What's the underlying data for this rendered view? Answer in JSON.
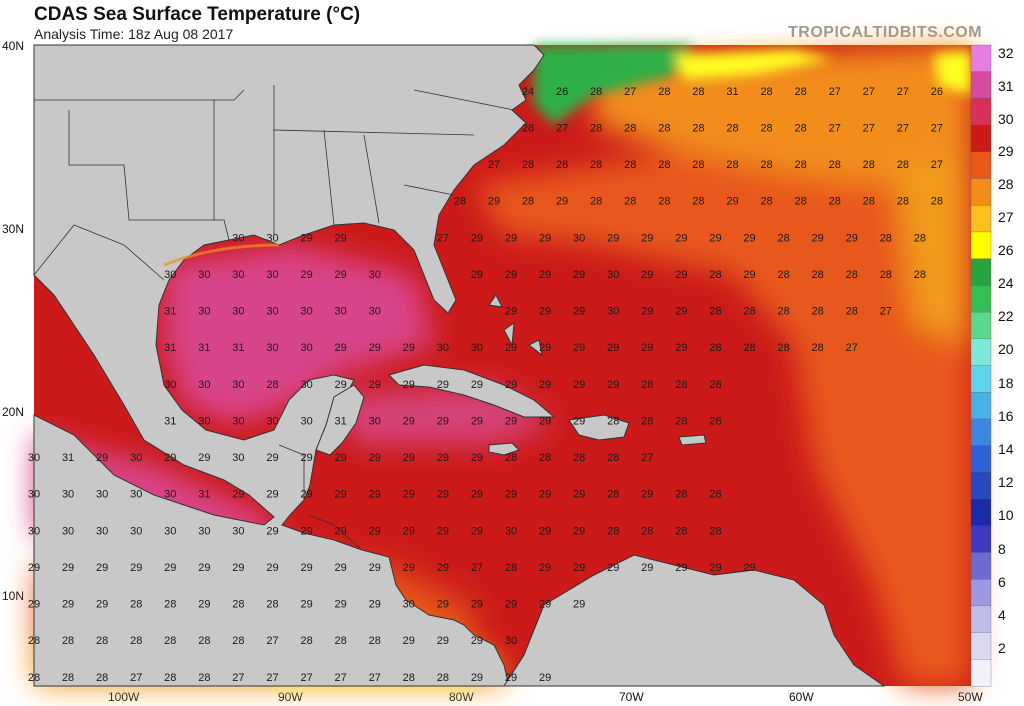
{
  "header": {
    "title": "CDAS Sea Surface Temperature (°C)",
    "subtitle": "Analysis Time: 18z Aug 08 2017",
    "brand": "TROPICALTIDBITS.COM"
  },
  "axes": {
    "lat_labels": [
      "40N",
      "30N",
      "20N",
      "10N"
    ],
    "lon_labels": [
      "100W",
      "90W",
      "80W",
      "70W",
      "60W",
      "50W"
    ]
  },
  "colorbar": {
    "labels": [
      "32",
      "31",
      "30",
      "29",
      "28",
      "27",
      "26",
      "24",
      "22",
      "20",
      "18",
      "16",
      "14",
      "12",
      "10",
      "8",
      "6",
      "4",
      "2"
    ],
    "stops": [
      {
        "color": "#e77de0"
      },
      {
        "color": "#d64aa0"
      },
      {
        "color": "#d9305a"
      },
      {
        "color": "#cc1a1a"
      },
      {
        "color": "#e8581a"
      },
      {
        "color": "#f28d1a"
      },
      {
        "color": "#fbbf1e"
      },
      {
        "color": "#ffff00"
      },
      {
        "color": "#28a43f"
      },
      {
        "color": "#35be55"
      },
      {
        "color": "#5cd88e"
      },
      {
        "color": "#7ee8d8"
      },
      {
        "color": "#5fd2ee"
      },
      {
        "color": "#4bb0e8"
      },
      {
        "color": "#3c88e0"
      },
      {
        "color": "#2f60d8"
      },
      {
        "color": "#2848c0"
      },
      {
        "color": "#1a2aa8"
      },
      {
        "color": "#3e3ac0"
      },
      {
        "color": "#6d6ad0"
      },
      {
        "color": "#9e98e0"
      },
      {
        "color": "#c0bcea"
      },
      {
        "color": "#dcd8f2"
      },
      {
        "color": "#f2f0fa"
      }
    ]
  },
  "colors": {
    "land": "#c8c8c8",
    "water_pink": "#d64a8c",
    "water_red": "#cc1a1a",
    "water_orange": "#e8581a",
    "water_amber": "#f29a1a",
    "water_yellow": "#ffff22",
    "water_green": "#2fb04a",
    "boundary": "#333333"
  },
  "grid_values": [
    {
      "row": 0,
      "lon": -76,
      "lat": 37.5,
      "vals": [
        "24",
        "26",
        "28",
        "27",
        "28",
        "28",
        "31",
        "28",
        "28",
        "27",
        "27",
        "27",
        "26"
      ]
    },
    {
      "row": 1,
      "lon": -76,
      "lat": 35.5,
      "vals": [
        "28",
        "27",
        "28",
        "28",
        "28",
        "28",
        "28",
        "28",
        "28",
        "27",
        "27",
        "27",
        "27"
      ]
    },
    {
      "row": 2,
      "lon": -78,
      "lat": 33.5,
      "vals": [
        "27",
        "28",
        "28",
        "28",
        "28",
        "28",
        "28",
        "28",
        "28",
        "28",
        "28",
        "28",
        "28",
        "27"
      ]
    },
    {
      "row": 3,
      "lon": -80,
      "lat": 31.5,
      "vals": [
        "28",
        "29",
        "28",
        "29",
        "28",
        "28",
        "28",
        "28",
        "29",
        "28",
        "28",
        "28",
        "28",
        "28",
        "28"
      ]
    },
    {
      "row": 4,
      "lon": -93,
      "lat": 29.5,
      "vals": [
        "30",
        "30",
        "29",
        "29"
      ]
    },
    {
      "row": 5,
      "lon": -81,
      "lat": 29.5,
      "vals": [
        "27",
        "29",
        "29",
        "29",
        "30",
        "29",
        "29",
        "29",
        "29",
        "29",
        "28",
        "29",
        "29",
        "28",
        "28"
      ]
    },
    {
      "row": 6,
      "lon": -97,
      "lat": 27.5,
      "vals": [
        "30",
        "30",
        "30",
        "30",
        "29",
        "29",
        "30"
      ]
    },
    {
      "row": 7,
      "lon": -79,
      "lat": 27.5,
      "vals": [
        "29",
        "29",
        "29",
        "29",
        "30",
        "29",
        "29",
        "28",
        "29",
        "28",
        "28",
        "28",
        "28",
        "28"
      ]
    },
    {
      "row": 8,
      "lon": -97,
      "lat": 25.5,
      "vals": [
        "31",
        "30",
        "30",
        "30",
        "30",
        "30",
        "30"
      ]
    },
    {
      "row": 9,
      "lon": -77,
      "lat": 25.5,
      "vals": [
        "29",
        "29",
        "29",
        "30",
        "29",
        "29",
        "28",
        "28",
        "28",
        "28",
        "28",
        "27"
      ]
    },
    {
      "row": 10,
      "lon": -97,
      "lat": 23.5,
      "vals": [
        "31",
        "31",
        "31",
        "30",
        "30",
        "29",
        "29",
        "29",
        "30",
        "30",
        "29",
        "29",
        "29",
        "29",
        "29",
        "29",
        "28",
        "28",
        "28",
        "28",
        "27"
      ]
    },
    {
      "row": 11,
      "lon": -97,
      "lat": 21.5,
      "vals": [
        "30",
        "30",
        "30",
        "28",
        "30",
        "29",
        "29",
        "29",
        "29",
        "29",
        "29",
        "29",
        "29",
        "29",
        "28",
        "28",
        "28"
      ]
    },
    {
      "row": 12,
      "lon": -97,
      "lat": 19.5,
      "vals": [
        "31",
        "30",
        "30",
        "30",
        "30",
        "31",
        "30",
        "29",
        "29",
        "29",
        "29",
        "29",
        "29",
        "28",
        "28",
        "28",
        "28"
      ]
    },
    {
      "row": 13,
      "lon": -105,
      "lat": 17.5,
      "vals": [
        "30",
        "31",
        "29",
        "30",
        "29",
        "29",
        "30",
        "29",
        "29",
        "29",
        "29",
        "29",
        "29",
        "29",
        "28",
        "28",
        "28",
        "28",
        "27"
      ]
    },
    {
      "row": 14,
      "lon": -105,
      "lat": 15.5,
      "vals": [
        "30",
        "30",
        "30",
        "30",
        "30",
        "31",
        "29",
        "29",
        "29",
        "29",
        "29",
        "29",
        "29",
        "29",
        "29",
        "29",
        "29",
        "28",
        "29",
        "28",
        "28"
      ]
    },
    {
      "row": 15,
      "lon": -105,
      "lat": 13.5,
      "vals": [
        "30",
        "30",
        "30",
        "30",
        "30",
        "30",
        "30",
        "29",
        "29",
        "29",
        "29",
        "29",
        "29",
        "29",
        "30",
        "29",
        "29",
        "28",
        "28",
        "28",
        "28"
      ]
    },
    {
      "row": 16,
      "lon": -105,
      "lat": 11.5,
      "vals": [
        "29",
        "29",
        "29",
        "29",
        "29",
        "29",
        "29",
        "29",
        "29",
        "29",
        "29",
        "29",
        "29",
        "27",
        "28",
        "29",
        "29",
        "29",
        "29",
        "29",
        "29",
        "29"
      ]
    },
    {
      "row": 17,
      "lon": -105,
      "lat": 9.5,
      "vals": [
        "29",
        "29",
        "29",
        "28",
        "28",
        "29",
        "28",
        "28",
        "29",
        "29",
        "29",
        "30",
        "29",
        "29",
        "29",
        "29",
        "29"
      ]
    },
    {
      "row": 18,
      "lon": -105,
      "lat": 7.5,
      "vals": [
        "28",
        "28",
        "28",
        "28",
        "28",
        "28",
        "28",
        "27",
        "28",
        "28",
        "28",
        "29",
        "29",
        "29",
        "30"
      ]
    },
    {
      "row": 19,
      "lon": -105,
      "lat": 5.5,
      "vals": [
        "28",
        "28",
        "28",
        "27",
        "28",
        "28",
        "27",
        "27",
        "27",
        "27",
        "27",
        "28",
        "28",
        "29",
        "29",
        "29"
      ]
    }
  ]
}
